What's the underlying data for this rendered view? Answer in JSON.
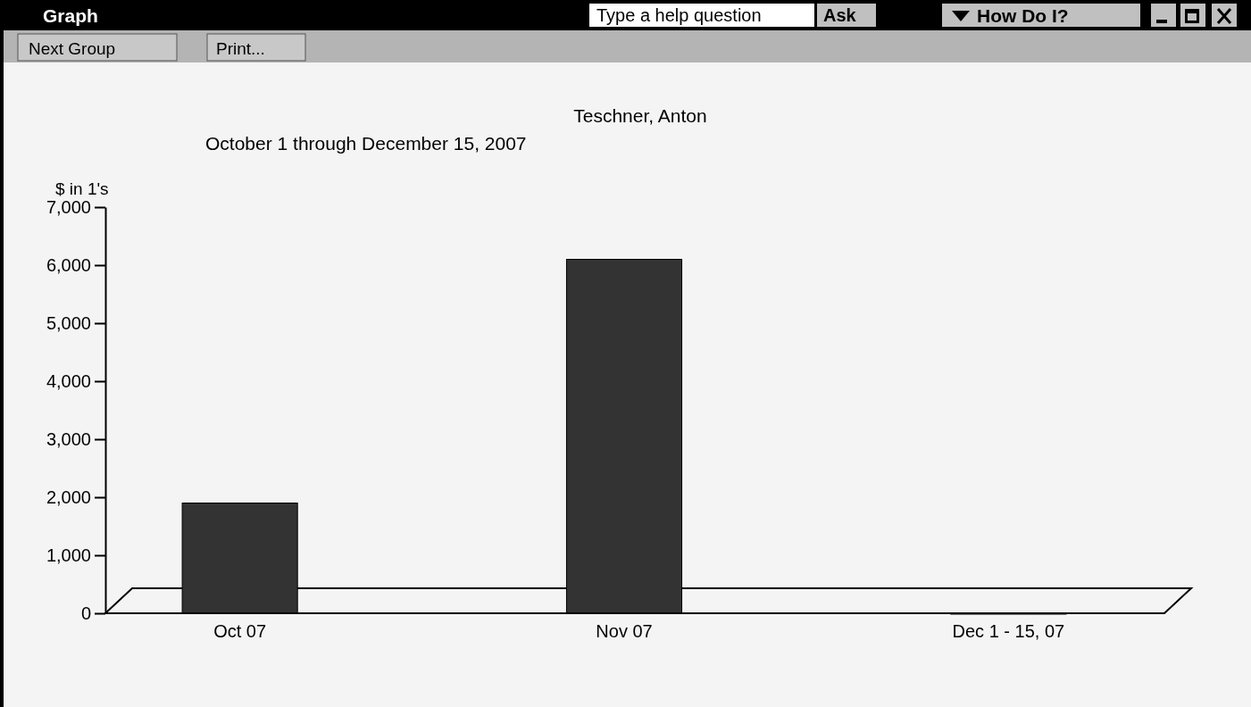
{
  "chart_data": {
    "type": "bar",
    "title": "Teschner, Anton",
    "subtitle": "October 1 through December 15, 2007",
    "ylabel": "$ in 1's",
    "categories": [
      "Oct 07",
      "Nov 07",
      "Dec 1 - 15, 07"
    ],
    "values": [
      1900,
      6100,
      0
    ],
    "color": "#333333",
    "ylim": [
      0,
      7000
    ],
    "yticks": [
      {
        "value": 0,
        "label": "0"
      },
      {
        "value": 1000,
        "label": "1,000"
      },
      {
        "value": 2000,
        "label": "2,000"
      },
      {
        "value": 3000,
        "label": "3,000"
      },
      {
        "value": 4000,
        "label": "4,000"
      },
      {
        "value": 5000,
        "label": "5,000"
      },
      {
        "value": 6000,
        "label": "6,000"
      },
      {
        "value": 7000,
        "label": "7,000"
      }
    ],
    "annotations": [
      "Graph",
      "Type a help question",
      "Ask",
      "How Do I?",
      "Next Group",
      "Print..."
    ]
  }
}
